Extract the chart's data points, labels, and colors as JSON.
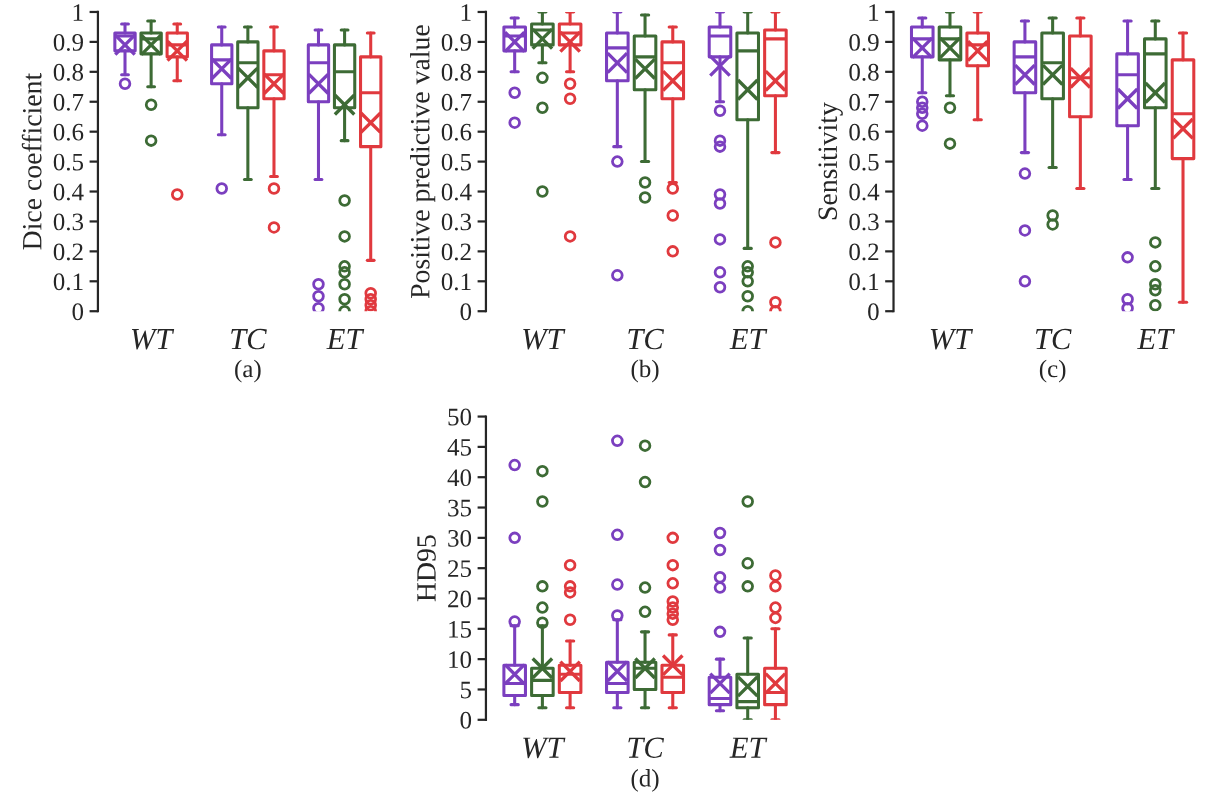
{
  "chart_data": [
    {
      "type": "box",
      "ylabel": "Dice coefficient",
      "categories": [
        "WT",
        "TC",
        "ET"
      ],
      "ylim": [
        0,
        1
      ],
      "yticks": [
        0,
        0.1,
        0.2,
        0.3,
        0.4,
        0.5,
        0.6,
        0.7,
        0.8,
        0.9,
        1
      ],
      "grid": false,
      "legend": false,
      "annotations": [
        "(a)"
      ],
      "series": [
        {
          "color": "#7b3fbf",
          "boxes": [
            {
              "low": 0.79,
              "q1": 0.87,
              "median": 0.92,
              "q3": 0.93,
              "high": 0.96,
              "mean": 0.89,
              "outliers": [
                0.76
              ]
            },
            {
              "low": 0.59,
              "q1": 0.76,
              "median": 0.84,
              "q3": 0.89,
              "high": 0.95,
              "mean": 0.81,
              "outliers": [
                0.41
              ]
            },
            {
              "low": 0.44,
              "q1": 0.7,
              "median": 0.83,
              "q3": 0.89,
              "high": 0.94,
              "mean": 0.76,
              "outliers": [
                0.09,
                0.05,
                0.01
              ]
            }
          ]
        },
        {
          "color": "#3d6b35",
          "boxes": [
            {
              "low": 0.75,
              "q1": 0.86,
              "median": 0.91,
              "q3": 0.93,
              "high": 0.97,
              "mean": 0.89,
              "outliers": [
                0.69,
                0.57
              ]
            },
            {
              "low": 0.44,
              "q1": 0.68,
              "median": 0.83,
              "q3": 0.9,
              "high": 0.95,
              "mean": 0.78
            },
            {
              "low": 0.57,
              "q1": 0.68,
              "median": 0.8,
              "q3": 0.89,
              "high": 0.94,
              "mean": 0.69,
              "outliers": [
                0.37,
                0.25,
                0.15,
                0.13,
                0.09,
                0.04,
                0.0
              ]
            }
          ]
        },
        {
          "color": "#e0393e",
          "boxes": [
            {
              "low": 0.77,
              "q1": 0.85,
              "median": 0.89,
              "q3": 0.93,
              "high": 0.96,
              "mean": 0.87,
              "outliers": [
                0.39
              ]
            },
            {
              "low": 0.45,
              "q1": 0.71,
              "median": 0.79,
              "q3": 0.87,
              "high": 0.95,
              "mean": 0.76,
              "outliers": [
                0.41,
                0.28
              ]
            },
            {
              "low": 0.17,
              "q1": 0.55,
              "median": 0.73,
              "q3": 0.85,
              "high": 0.93,
              "mean": 0.63,
              "outliers": [
                0.06,
                0.04,
                0.02,
                0.0
              ]
            }
          ]
        }
      ]
    },
    {
      "type": "box",
      "ylabel": "Positive predictive value",
      "categories": [
        "WT",
        "TC",
        "ET"
      ],
      "ylim": [
        0,
        1
      ],
      "yticks": [
        0,
        0.1,
        0.2,
        0.3,
        0.4,
        0.5,
        0.6,
        0.7,
        0.8,
        0.9,
        1
      ],
      "grid": false,
      "legend": false,
      "annotations": [
        "(b)"
      ],
      "series": [
        {
          "color": "#7b3fbf",
          "boxes": [
            {
              "low": 0.8,
              "q1": 0.87,
              "median": 0.92,
              "q3": 0.95,
              "high": 0.98,
              "mean": 0.9,
              "outliers": [
                0.73,
                0.63
              ]
            },
            {
              "low": 0.55,
              "q1": 0.77,
              "median": 0.88,
              "q3": 0.93,
              "high": 1.0,
              "mean": 0.83,
              "outliers": [
                0.5,
                0.12
              ]
            },
            {
              "low": 0.7,
              "q1": 0.85,
              "median": 0.92,
              "q3": 0.95,
              "high": 1.0,
              "mean": 0.82,
              "outliers": [
                0.67,
                0.57,
                0.55,
                0.39,
                0.36,
                0.24,
                0.13,
                0.08
              ]
            }
          ]
        },
        {
          "color": "#3d6b35",
          "boxes": [
            {
              "low": 0.83,
              "q1": 0.89,
              "median": 0.94,
              "q3": 0.96,
              "high": 1.0,
              "mean": 0.91,
              "outliers": [
                0.78,
                0.68,
                0.4
              ]
            },
            {
              "low": 0.5,
              "q1": 0.74,
              "median": 0.85,
              "q3": 0.92,
              "high": 0.99,
              "mean": 0.81,
              "outliers": [
                0.43,
                0.38
              ]
            },
            {
              "low": 0.21,
              "q1": 0.64,
              "median": 0.87,
              "q3": 0.93,
              "high": 1.0,
              "mean": 0.74,
              "outliers": [
                0.15,
                0.13,
                0.1,
                0.05,
                0.0
              ]
            }
          ]
        },
        {
          "color": "#e0393e",
          "boxes": [
            {
              "low": 0.8,
              "q1": 0.89,
              "median": 0.93,
              "q3": 0.96,
              "high": 1.0,
              "mean": 0.9,
              "outliers": [
                0.76,
                0.71,
                0.25
              ]
            },
            {
              "low": 0.43,
              "q1": 0.71,
              "median": 0.83,
              "q3": 0.9,
              "high": 0.95,
              "mean": 0.77,
              "outliers": [
                0.41,
                0.32,
                0.2
              ]
            },
            {
              "low": 0.53,
              "q1": 0.72,
              "median": 0.91,
              "q3": 0.94,
              "high": 1.0,
              "mean": 0.77,
              "outliers": [
                0.23,
                0.03,
                0.0
              ]
            }
          ]
        }
      ]
    },
    {
      "type": "box",
      "ylabel": "Sensitivity",
      "categories": [
        "WT",
        "TC",
        "ET"
      ],
      "ylim": [
        0,
        1
      ],
      "yticks": [
        0,
        0.1,
        0.2,
        0.3,
        0.4,
        0.5,
        0.6,
        0.7,
        0.8,
        0.9,
        1
      ],
      "grid": false,
      "legend": false,
      "annotations": [
        "(c)"
      ],
      "series": [
        {
          "color": "#7b3fbf",
          "boxes": [
            {
              "low": 0.73,
              "q1": 0.85,
              "median": 0.91,
              "q3": 0.95,
              "high": 0.98,
              "mean": 0.88,
              "outliers": [
                0.7,
                0.68,
                0.66,
                0.62
              ]
            },
            {
              "low": 0.53,
              "q1": 0.73,
              "median": 0.85,
              "q3": 0.9,
              "high": 0.97,
              "mean": 0.79,
              "outliers": [
                0.46,
                0.27,
                0.1
              ]
            },
            {
              "low": 0.44,
              "q1": 0.62,
              "median": 0.79,
              "q3": 0.86,
              "high": 0.97,
              "mean": 0.71,
              "outliers": [
                0.18,
                0.04,
                0.01
              ]
            }
          ]
        },
        {
          "color": "#3d6b35",
          "boxes": [
            {
              "low": 0.72,
              "q1": 0.84,
              "median": 0.91,
              "q3": 0.95,
              "high": 1.0,
              "mean": 0.88,
              "outliers": [
                0.68,
                0.56
              ]
            },
            {
              "low": 0.48,
              "q1": 0.71,
              "median": 0.83,
              "q3": 0.93,
              "high": 0.98,
              "mean": 0.79,
              "outliers": [
                0.32,
                0.29
              ]
            },
            {
              "low": 0.41,
              "q1": 0.68,
              "median": 0.86,
              "q3": 0.91,
              "high": 0.97,
              "mean": 0.73,
              "outliers": [
                0.23,
                0.15,
                0.09,
                0.07,
                0.02
              ]
            }
          ]
        },
        {
          "color": "#e0393e",
          "boxes": [
            {
              "low": 0.64,
              "q1": 0.82,
              "median": 0.89,
              "q3": 0.93,
              "high": 1.0,
              "mean": 0.87
            },
            {
              "low": 0.41,
              "q1": 0.65,
              "median": 0.78,
              "q3": 0.92,
              "high": 0.98,
              "mean": 0.78
            },
            {
              "low": 0.03,
              "q1": 0.51,
              "median": 0.66,
              "q3": 0.84,
              "high": 0.93,
              "mean": 0.61
            }
          ]
        }
      ]
    },
    {
      "type": "box",
      "ylabel": "HD95",
      "categories": [
        "WT",
        "TC",
        "ET"
      ],
      "ylim": [
        0,
        50
      ],
      "yticks": [
        0,
        5,
        10,
        15,
        20,
        25,
        30,
        35,
        40,
        45,
        50
      ],
      "grid": false,
      "legend": false,
      "annotations": [
        "(d)"
      ],
      "series": [
        {
          "color": "#7b3fbf",
          "boxes": [
            {
              "low": 2.5,
              "q1": 4,
              "median": 6,
              "q3": 9,
              "high": 15.5,
              "mean": 7.5,
              "outliers": [
                16.2,
                30,
                42
              ]
            },
            {
              "low": 2,
              "q1": 4.5,
              "median": 6,
              "q3": 9.5,
              "high": 16.5,
              "mean": 8,
              "outliers": [
                17.2,
                22.3,
                30.5,
                46
              ]
            },
            {
              "low": 1.5,
              "q1": 2.5,
              "median": 3.5,
              "q3": 7,
              "high": 10,
              "mean": 6,
              "outliers": [
                14.5,
                21.8,
                23.5,
                28,
                30.8
              ]
            }
          ]
        },
        {
          "color": "#3d6b35",
          "boxes": [
            {
              "low": 2,
              "q1": 4,
              "median": 6.5,
              "q3": 8.5,
              "high": 15.5,
              "mean": 8.5,
              "outliers": [
                16,
                18.5,
                22,
                36,
                41
              ]
            },
            {
              "low": 2,
              "q1": 5,
              "median": 8.5,
              "q3": 9.5,
              "high": 14.5,
              "mean": 8.5,
              "outliers": [
                17.8,
                21.8,
                39.2,
                45.2
              ]
            },
            {
              "low": 0,
              "q1": 2,
              "median": 3,
              "q3": 7.5,
              "high": 13.5,
              "mean": 5.5,
              "outliers": [
                22,
                25.8,
                36
              ]
            }
          ]
        },
        {
          "color": "#e0393e",
          "boxes": [
            {
              "low": 2,
              "q1": 4.5,
              "median": 7.5,
              "q3": 9,
              "high": 13,
              "mean": 8,
              "outliers": [
                16.5,
                21,
                22,
                25.5
              ]
            },
            {
              "low": 2,
              "q1": 4.5,
              "median": 7,
              "q3": 9,
              "high": 14,
              "mean": 9,
              "outliers": [
                16.5,
                17.5,
                18.5,
                19.5,
                22.5,
                25.5,
                30
              ]
            },
            {
              "low": 0,
              "q1": 2.5,
              "median": 4.5,
              "q3": 8.5,
              "high": 15,
              "mean": 6,
              "outliers": [
                16.8,
                18.5,
                22,
                23.8
              ]
            }
          ]
        }
      ]
    }
  ]
}
